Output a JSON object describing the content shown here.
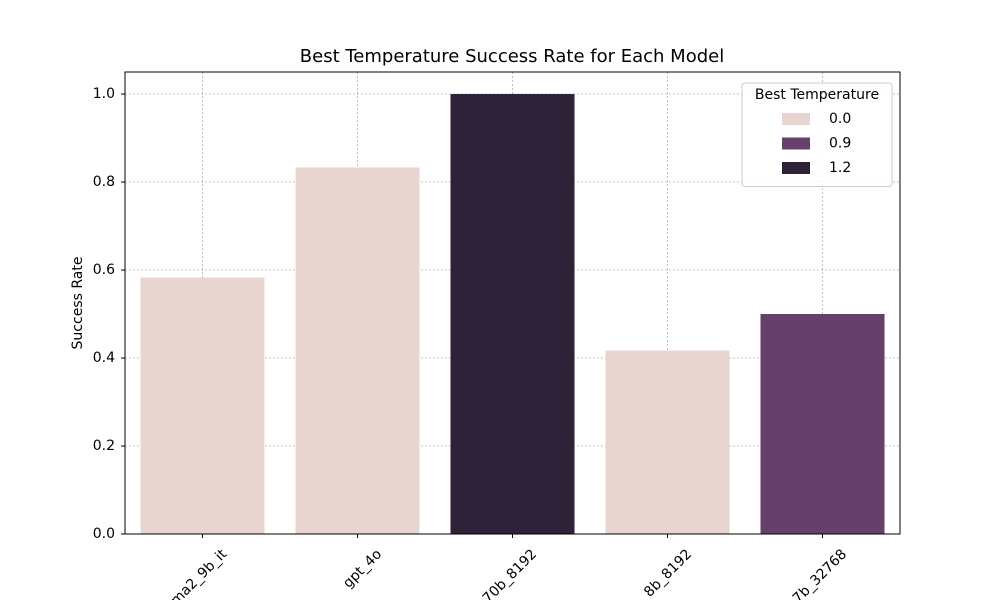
{
  "chart_data": {
    "type": "bar",
    "title": "Best Temperature Success Rate for Each Model",
    "y_label": "Success Rate",
    "categories": [
      "ma2_9b_it",
      "gpt_4o",
      "70b_8192",
      "8b_8192",
      "7b_32768"
    ],
    "series": [
      {
        "name": "0.0",
        "color": "#e8d5cf",
        "values": [
          0.583,
          0.833,
          null,
          0.417,
          null
        ]
      },
      {
        "name": "0.9",
        "color": "#673f6b",
        "values": [
          null,
          null,
          null,
          null,
          0.5
        ]
      },
      {
        "name": "1.2",
        "color": "#2e2239",
        "values": [
          null,
          null,
          1.0,
          null,
          null
        ]
      }
    ],
    "legend_title": "Best Temperature",
    "legend": "upper right",
    "ylim": [
      0,
      1.05
    ],
    "yticks": [
      {
        "value": 0,
        "label": "0.0"
      },
      {
        "value": 0.2,
        "label": "0.2"
      },
      {
        "value": 0.4,
        "label": "0.4"
      },
      {
        "value": 0.6,
        "label": "0.6"
      },
      {
        "value": 0.8,
        "label": "0.8"
      },
      {
        "value": 1.0,
        "label": "1.0"
      }
    ],
    "grid": true
  }
}
